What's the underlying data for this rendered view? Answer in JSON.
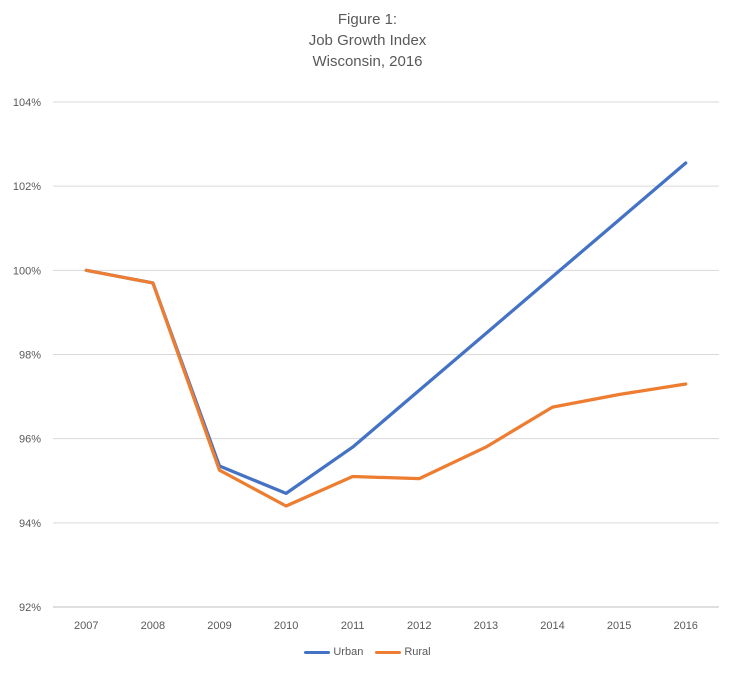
{
  "title": {
    "lines": [
      "Figure 1:",
      "Job Growth Index",
      "Wisconsin, 2016"
    ]
  },
  "legend": {
    "items": [
      {
        "label": "Urban",
        "color": "#4472C4"
      },
      {
        "label": "Rural",
        "color": "#ED7D31"
      }
    ]
  },
  "chart_data": {
    "type": "line",
    "title": "Figure 1: Job Growth Index Wisconsin, 2016",
    "x": [
      2007,
      2008,
      2009,
      2010,
      2011,
      2012,
      2013,
      2014,
      2015,
      2016
    ],
    "series": [
      {
        "name": "Urban",
        "color": "#4472C4",
        "values": [
          100.0,
          99.7,
          95.35,
          94.7,
          95.8,
          97.15,
          98.5,
          99.85,
          101.2,
          102.55
        ]
      },
      {
        "name": "Rural",
        "color": "#ED7D31",
        "values": [
          100.0,
          99.7,
          95.25,
          94.4,
          95.1,
          95.05,
          95.8,
          96.75,
          97.05,
          97.3
        ]
      }
    ],
    "xlabel": "",
    "ylabel": "",
    "ylim": [
      92,
      104
    ],
    "ytick_step": 2,
    "yticks": [
      "92%",
      "94%",
      "96%",
      "98%",
      "100%",
      "102%",
      "104%"
    ],
    "grid": true,
    "legend_position": "bottom",
    "colors": {
      "text": "#595959",
      "gridline": "#D9D9D9",
      "axis_line": "#BFBFBF",
      "background": "#FFFFFF"
    }
  }
}
